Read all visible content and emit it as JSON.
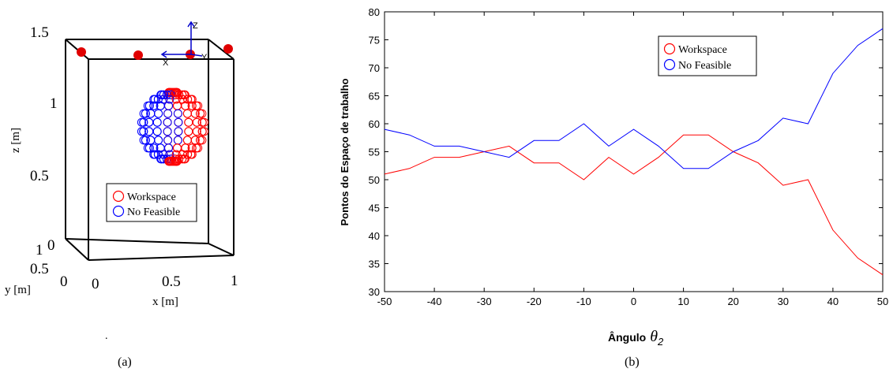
{
  "chart_data": [
    {
      "type": "scatter",
      "view": "3d",
      "panel_label": "(a)",
      "xlabel": "x [m]",
      "ylabel": "y [m]",
      "zlabel": "z [m]",
      "x_ticks": [
        "0",
        "0.5",
        "1"
      ],
      "y_ticks": [
        "0",
        "0.5",
        "1"
      ],
      "z_ticks": [
        "0",
        "0.5",
        "1",
        "1.5"
      ],
      "frame_axes": [
        "X",
        "Y",
        "Z"
      ],
      "legend": [
        "Workspace",
        "No Feasible"
      ],
      "legend_position": "lower-center",
      "colors": {
        "workspace": "#ff0000",
        "no_feasible": "#0000ff",
        "base_points": "#e00000"
      }
    },
    {
      "type": "line",
      "panel_label": "(b)",
      "xlabel": "Ângulo",
      "xlabel_symbol": "θ",
      "xlabel_subscript": "2",
      "ylabel": "Pontos do Espaço de trabalho",
      "xlim": [
        -50,
        50
      ],
      "ylim": [
        30,
        80
      ],
      "x_ticks": [
        -50,
        -40,
        -30,
        -20,
        -10,
        0,
        10,
        20,
        30,
        40,
        50
      ],
      "y_ticks": [
        30,
        35,
        40,
        45,
        50,
        55,
        60,
        65,
        70,
        75,
        80
      ],
      "x": [
        -50,
        -45,
        -40,
        -35,
        -30,
        -25,
        -20,
        -15,
        -10,
        -5,
        0,
        5,
        10,
        15,
        20,
        25,
        30,
        35,
        40,
        45,
        50
      ],
      "series": [
        {
          "name": "Workspace",
          "color": "#ff0000",
          "values": [
            51,
            52,
            54,
            54,
            55,
            56,
            53,
            53,
            50,
            54,
            51,
            54,
            58,
            58,
            55,
            53,
            49,
            50,
            41,
            36,
            33
          ]
        },
        {
          "name": "No Feasible",
          "color": "#0000ff",
          "values": [
            59,
            58,
            56,
            56,
            55,
            54,
            57,
            57,
            60,
            56,
            59,
            56,
            52,
            52,
            55,
            57,
            61,
            60,
            69,
            74,
            77
          ]
        }
      ],
      "legend_position": "top-center",
      "grid": false
    }
  ]
}
